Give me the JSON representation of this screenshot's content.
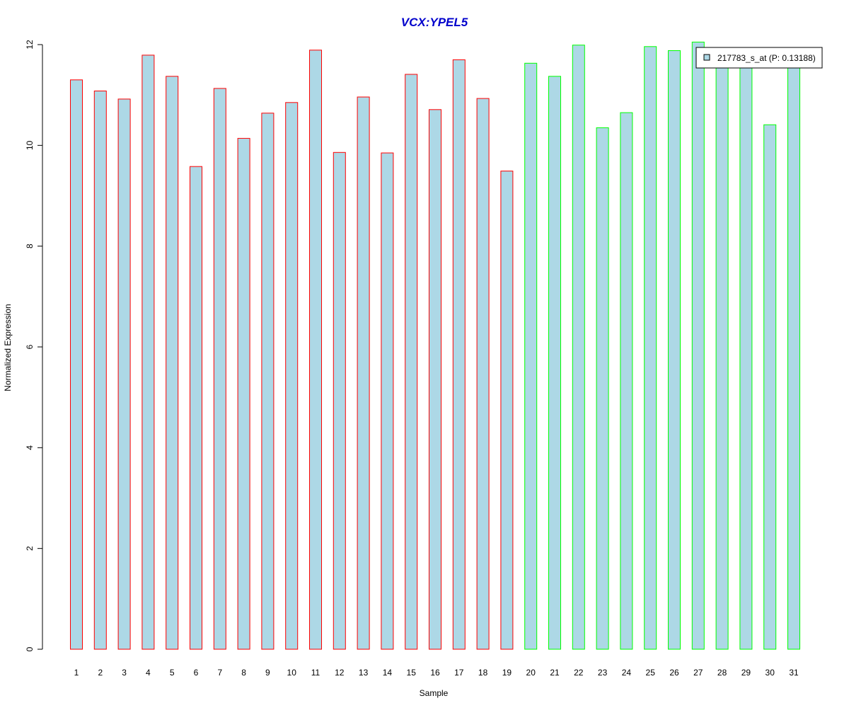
{
  "chart_data": {
    "type": "bar",
    "title": "VCX:YPEL5",
    "xlabel": "Sample",
    "ylabel": "Normalized Expression",
    "ylim": [
      0,
      12
    ],
    "yticks": [
      0,
      2,
      4,
      6,
      8,
      10,
      12
    ],
    "grid": false,
    "legend": {
      "position": "top-right",
      "entries": [
        "217783_s_at (P: 0.13188)"
      ]
    },
    "colors": {
      "title": "#0000cc",
      "bar_fill": "#add8e6",
      "group1_border": "#ff0000",
      "group2_border": "#00ff00"
    },
    "categories": [
      "1",
      "2",
      "3",
      "4",
      "5",
      "6",
      "7",
      "8",
      "9",
      "10",
      "11",
      "12",
      "13",
      "14",
      "15",
      "16",
      "17",
      "18",
      "19",
      "20",
      "21",
      "22",
      "23",
      "24",
      "25",
      "26",
      "27",
      "28",
      "29",
      "30",
      "31"
    ],
    "group_border": [
      "group1",
      "group1",
      "group1",
      "group1",
      "group1",
      "group1",
      "group1",
      "group1",
      "group1",
      "group1",
      "group1",
      "group1",
      "group1",
      "group1",
      "group1",
      "group1",
      "group1",
      "group1",
      "group1",
      "group2",
      "group2",
      "group2",
      "group2",
      "group2",
      "group2",
      "group2",
      "group2",
      "group2",
      "group2",
      "group2",
      "group2"
    ],
    "values": [
      11.3,
      11.08,
      10.92,
      11.79,
      11.37,
      9.58,
      11.13,
      10.14,
      10.64,
      10.85,
      11.89,
      9.86,
      10.96,
      9.85,
      11.41,
      10.71,
      11.7,
      10.93,
      9.49,
      11.63,
      11.37,
      11.99,
      10.35,
      10.65,
      11.96,
      11.88,
      12.05,
      11.75,
      11.72,
      10.41,
      11.62
    ]
  }
}
